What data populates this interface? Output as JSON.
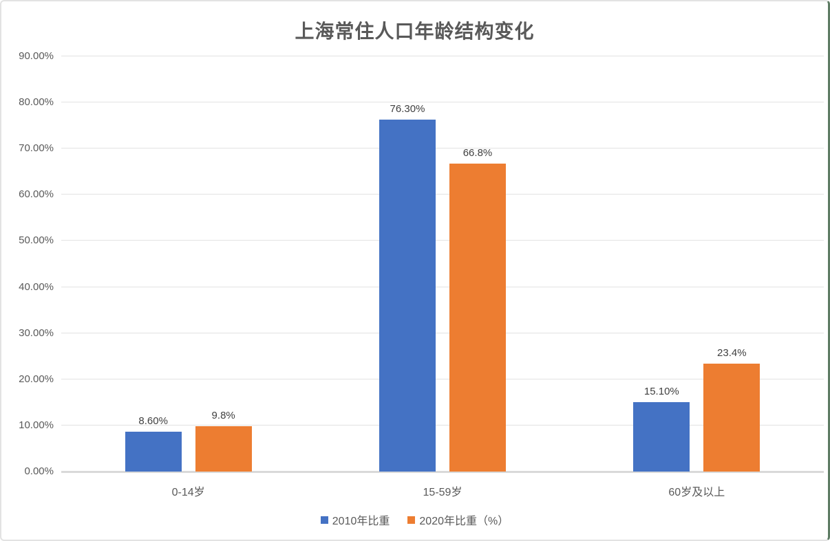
{
  "chart_data": {
    "type": "bar",
    "title": "上海常住人口年龄结构变化",
    "categories": [
      "0-14岁",
      "15-59岁",
      "60岁及以上"
    ],
    "series": [
      {
        "name": "2010年比重",
        "color": "#4472C4",
        "values": [
          8.6,
          76.3,
          15.1
        ],
        "value_labels": [
          "8.60%",
          "76.30%",
          "15.10%"
        ]
      },
      {
        "name": "2020年比重（%）",
        "color": "#ED7D31",
        "values": [
          9.8,
          66.8,
          23.4
        ],
        "value_labels": [
          "9.8%",
          "66.8%",
          "23.4%"
        ]
      }
    ],
    "xlabel": "",
    "ylabel": "",
    "ylim": [
      0,
      90
    ],
    "yticks": [
      0,
      10,
      20,
      30,
      40,
      50,
      60,
      70,
      80,
      90
    ],
    "ytick_labels": [
      "0.00%",
      "10.00%",
      "20.00%",
      "30.00%",
      "40.00%",
      "50.00%",
      "60.00%",
      "70.00%",
      "80.00%",
      "90.00%"
    ],
    "grid": true,
    "legend_position": "bottom"
  },
  "frame": {
    "background": "#ffffff",
    "border_color": "#e2e2e2",
    "right_edge_color": "#5d7b63",
    "gridline_color": "#e2e2e2",
    "axis_text_color": "#595959",
    "title_color": "#595959",
    "data_label_color": "#3f3f3f"
  }
}
